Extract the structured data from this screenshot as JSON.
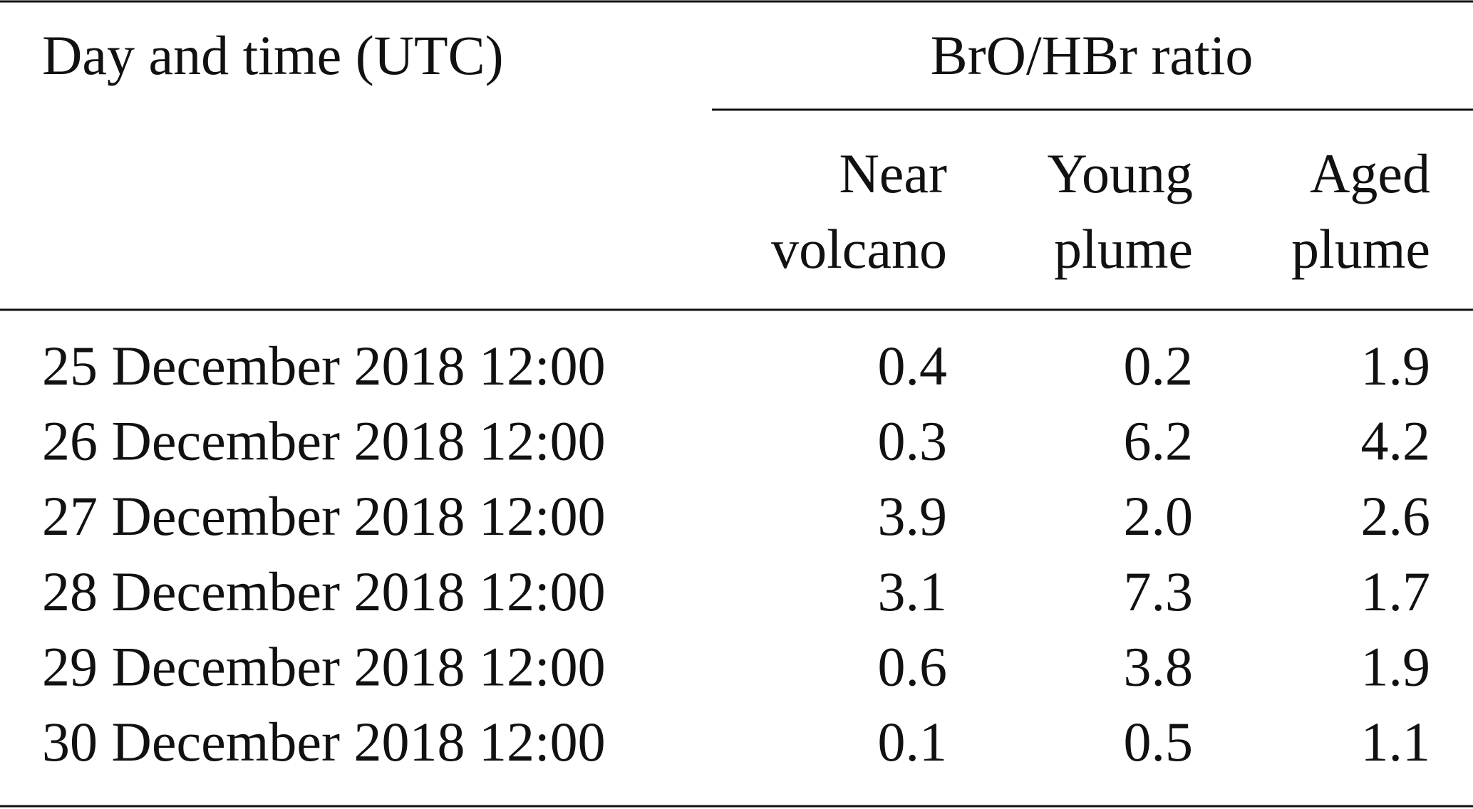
{
  "table": {
    "header": {
      "first": "Day and time (UTC)",
      "group": "BrO/HBr ratio"
    },
    "columns": [
      [
        "Near",
        "volcano"
      ],
      [
        "Young",
        "plume"
      ],
      [
        "Aged",
        "plume"
      ]
    ],
    "rows": [
      [
        "25 December 2018 12:00",
        "0.4",
        "0.2",
        "1.9"
      ],
      [
        "26 December 2018 12:00",
        "0.3",
        "6.2",
        "4.2"
      ],
      [
        "27 December 2018 12:00",
        "3.9",
        "2.0",
        "2.6"
      ],
      [
        "28 December 2018 12:00",
        "3.1",
        "7.3",
        "1.7"
      ],
      [
        "29 December 2018 12:00",
        "0.6",
        "3.8",
        "1.9"
      ],
      [
        "30 December 2018 12:00",
        "0.1",
        "0.5",
        "1.1"
      ]
    ]
  }
}
